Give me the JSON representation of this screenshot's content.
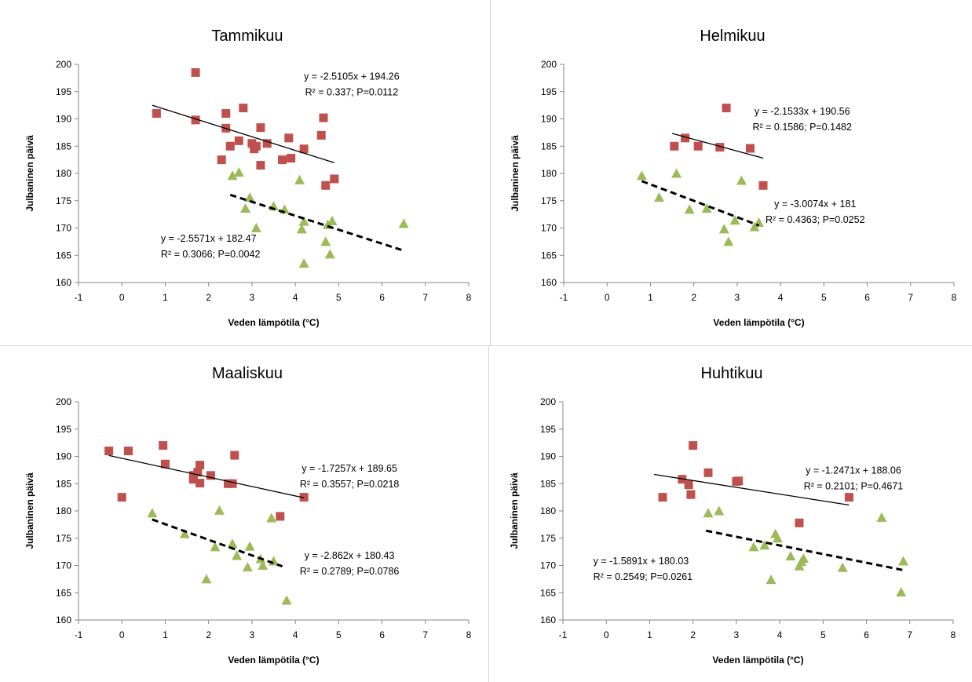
{
  "chart_data": [
    {
      "type": "scatter",
      "title": "Tammikuu",
      "xlabel": "Veden lämpötila (°C)",
      "ylabel": "Julbaninen päivä",
      "xlim": [
        -1,
        8
      ],
      "ylim": [
        160,
        200
      ],
      "xticks": [
        "-1",
        "0",
        "1",
        "2",
        "3",
        "4",
        "5",
        "6",
        "7",
        "8"
      ],
      "yticks": [
        "160",
        "165",
        "170",
        "175",
        "180",
        "185",
        "190",
        "195",
        "200"
      ],
      "grid": false,
      "series": [
        {
          "color": "#c0504d",
          "marker": "square",
          "points": [
            [
              0.8,
              191
            ],
            [
              1.7,
              198.5
            ],
            [
              1.7,
              189.8
            ],
            [
              2.3,
              182.5
            ],
            [
              2.4,
              191
            ],
            [
              2.4,
              188.3
            ],
            [
              2.5,
              185
            ],
            [
              2.7,
              186
            ],
            [
              2.8,
              192
            ],
            [
              3.0,
              185.5
            ],
            [
              3.05,
              184.5
            ],
            [
              3.1,
              185
            ],
            [
              3.2,
              188.4
            ],
            [
              3.2,
              181.5
            ],
            [
              3.35,
              185.5
            ],
            [
              3.7,
              182.5
            ],
            [
              3.85,
              186.5
            ],
            [
              3.9,
              182.8
            ],
            [
              4.2,
              184.5
            ],
            [
              4.6,
              187
            ],
            [
              4.65,
              190.2
            ],
            [
              4.7,
              177.8
            ],
            [
              4.9,
              179
            ]
          ],
          "trend": {
            "x": [
              0.7,
              4.9
            ],
            "dashed": false
          }
        },
        {
          "color": "#9bbb59",
          "marker": "triangle",
          "points": [
            [
              2.55,
              179.6
            ],
            [
              2.7,
              180.2
            ],
            [
              2.85,
              173.6
            ],
            [
              2.95,
              175.6
            ],
            [
              3.1,
              170
            ],
            [
              3.5,
              174
            ],
            [
              3.75,
              173.4
            ],
            [
              4.1,
              178.8
            ],
            [
              4.15,
              169.8
            ],
            [
              4.2,
              163.5
            ],
            [
              4.2,
              171.2
            ],
            [
              4.7,
              167.5
            ],
            [
              4.75,
              170.6
            ],
            [
              4.8,
              165.2
            ],
            [
              4.85,
              171.3
            ],
            [
              6.5,
              170.8
            ]
          ],
          "trend": {
            "x": [
              2.5,
              6.5
            ],
            "dashed": true
          }
        }
      ],
      "annotations": [
        {
          "line1": "y = -2.5105x + 194.26",
          "line2": "R² = 0.337; P=0.0112",
          "ax": 5.3,
          "ay": 197.2,
          "align": "middle"
        },
        {
          "line1": "y = -2.5571x + 182.47",
          "line2": "R² = 0.3066; P=0.0042",
          "ax": 0.9,
          "ay": 167.5,
          "align": "start"
        }
      ]
    },
    {
      "type": "scatter",
      "title": "Helmikuu",
      "xlabel": "Veden lämpötila (°C)",
      "ylabel": "Julbaninen päivä",
      "xlim": [
        -1,
        8
      ],
      "ylim": [
        160,
        200
      ],
      "xticks": [
        "-1",
        "0",
        "1",
        "2",
        "3",
        "4",
        "5",
        "6",
        "7",
        "8"
      ],
      "yticks": [
        "160",
        "165",
        "170",
        "175",
        "180",
        "185",
        "190",
        "195",
        "200"
      ],
      "grid": false,
      "series": [
        {
          "color": "#c0504d",
          "marker": "square",
          "points": [
            [
              1.55,
              185
            ],
            [
              1.8,
              186.5
            ],
            [
              2.1,
              185
            ],
            [
              2.75,
              192
            ],
            [
              2.6,
              184.8
            ],
            [
              3.3,
              184.6
            ],
            [
              3.6,
              177.8
            ]
          ],
          "trend": {
            "x": [
              1.5,
              3.6
            ],
            "dashed": false
          }
        },
        {
          "color": "#9bbb59",
          "marker": "triangle",
          "points": [
            [
              0.8,
              179.6
            ],
            [
              1.2,
              175.6
            ],
            [
              1.6,
              180
            ],
            [
              1.9,
              173.4
            ],
            [
              2.3,
              173.6
            ],
            [
              2.7,
              169.8
            ],
            [
              2.8,
              167.5
            ],
            [
              2.95,
              171.4
            ],
            [
              3.1,
              178.7
            ],
            [
              3.4,
              170.2
            ],
            [
              3.5,
              171
            ]
          ],
          "trend": {
            "x": [
              0.8,
              3.5
            ],
            "dashed": true
          }
        }
      ],
      "annotations": [
        {
          "line1": "y = -2.1533x + 190.56",
          "line2": "R² = 0.1586; P=0.1482",
          "ax": 4.5,
          "ay": 190.8,
          "align": "middle"
        },
        {
          "line1": "y = -3.0074x + 181",
          "line2": "R² = 0.4363; P=0.0252",
          "ax": 4.8,
          "ay": 173.8,
          "align": "middle"
        }
      ]
    },
    {
      "type": "scatter",
      "title": "Maaliskuu",
      "xlabel": "Veden lämpötila (°C)",
      "ylabel": "Julbaninen päivä",
      "xlim": [
        -1,
        8
      ],
      "ylim": [
        160,
        200
      ],
      "xticks": [
        "-1",
        "0",
        "1",
        "2",
        "3",
        "4",
        "5",
        "6",
        "7",
        "8"
      ],
      "yticks": [
        "160",
        "165",
        "170",
        "175",
        "180",
        "185",
        "190",
        "195",
        "200"
      ],
      "grid": false,
      "series": [
        {
          "color": "#c0504d",
          "marker": "square",
          "points": [
            [
              -0.3,
              191
            ],
            [
              0,
              182.5
            ],
            [
              0.15,
              191
            ],
            [
              0.95,
              192
            ],
            [
              1.0,
              188.6
            ],
            [
              1.65,
              186.5
            ],
            [
              1.65,
              185.8
            ],
            [
              1.75,
              187.1
            ],
            [
              1.8,
              188.4
            ],
            [
              1.8,
              185.1
            ],
            [
              2.05,
              186.5
            ],
            [
              2.45,
              185
            ],
            [
              2.55,
              185
            ],
            [
              2.6,
              190.2
            ],
            [
              3.65,
              179
            ],
            [
              4.2,
              182.5
            ]
          ],
          "trend": {
            "x": [
              -0.3,
              4.2
            ],
            "dashed": false
          }
        },
        {
          "color": "#9bbb59",
          "marker": "triangle",
          "points": [
            [
              0.7,
              179.6
            ],
            [
              1.45,
              175.8
            ],
            [
              1.95,
              167.5
            ],
            [
              2.15,
              173.4
            ],
            [
              2.25,
              180.1
            ],
            [
              2.55,
              174
            ],
            [
              2.65,
              171.8
            ],
            [
              2.9,
              169.7
            ],
            [
              2.95,
              173.5
            ],
            [
              3.2,
              171.2
            ],
            [
              3.25,
              170
            ],
            [
              3.45,
              178.7
            ],
            [
              3.5,
              170.8
            ],
            [
              3.8,
              163.6
            ]
          ],
          "trend": {
            "x": [
              0.7,
              3.7
            ],
            "dashed": true
          }
        }
      ],
      "annotations": [
        {
          "line1": "y = -1.7257x + 189.65",
          "line2": "R² = 0.3557; P=0.0218",
          "ax": 5.25,
          "ay": 187.2,
          "align": "middle"
        },
        {
          "line1": "y = -2.862x + 180.43",
          "line2": "R² = 0.2789; P=0.0786",
          "ax": 5.25,
          "ay": 171.2,
          "align": "middle"
        }
      ]
    },
    {
      "type": "scatter",
      "title": "Huhtikuu",
      "xlabel": "Veden lämpötila (°C)",
      "ylabel": "Julbaninen päivä",
      "xlim": [
        -1,
        8
      ],
      "ylim": [
        160,
        200
      ],
      "xticks": [
        "-1",
        "0",
        "1",
        "2",
        "3",
        "4",
        "5",
        "6",
        "7",
        "8"
      ],
      "yticks": [
        "160",
        "165",
        "170",
        "175",
        "180",
        "185",
        "190",
        "195",
        "200"
      ],
      "grid": false,
      "series": [
        {
          "color": "#c0504d",
          "marker": "square",
          "points": [
            [
              1.3,
              182.5
            ],
            [
              1.75,
              185.8
            ],
            [
              1.9,
              184.8
            ],
            [
              1.95,
              183
            ],
            [
              2.0,
              192
            ],
            [
              2.35,
              187
            ],
            [
              3.0,
              185.4
            ],
            [
              3.05,
              185.5
            ],
            [
              4.45,
              177.8
            ],
            [
              5.6,
              182.5
            ]
          ],
          "trend": {
            "x": [
              1.1,
              5.6
            ],
            "dashed": false
          }
        },
        {
          "color": "#9bbb59",
          "marker": "triangle",
          "points": [
            [
              2.35,
              179.6
            ],
            [
              2.6,
              180
            ],
            [
              3.4,
              173.4
            ],
            [
              3.65,
              173.7
            ],
            [
              3.8,
              167.4
            ],
            [
              3.9,
              175.8
            ],
            [
              3.95,
              175
            ],
            [
              4.25,
              171.7
            ],
            [
              4.45,
              169.9
            ],
            [
              4.5,
              170.7
            ],
            [
              4.55,
              171.3
            ],
            [
              5.45,
              169.6
            ],
            [
              6.35,
              178.8
            ],
            [
              6.8,
              165.1
            ],
            [
              6.85,
              170.8
            ]
          ],
          "trend": {
            "x": [
              2.3,
              6.85
            ],
            "dashed": true
          }
        }
      ],
      "annotations": [
        {
          "line1": "y = -1.2471x + 188.06",
          "line2": "R² = 0.2101; P=0.4671",
          "ax": 5.7,
          "ay": 186.8,
          "align": "middle"
        },
        {
          "line1": "y = -1.5891x + 180.03",
          "line2": "R² = 0.2549; P=0.0261",
          "ax": -0.3,
          "ay": 170.2,
          "align": "start"
        }
      ]
    }
  ]
}
